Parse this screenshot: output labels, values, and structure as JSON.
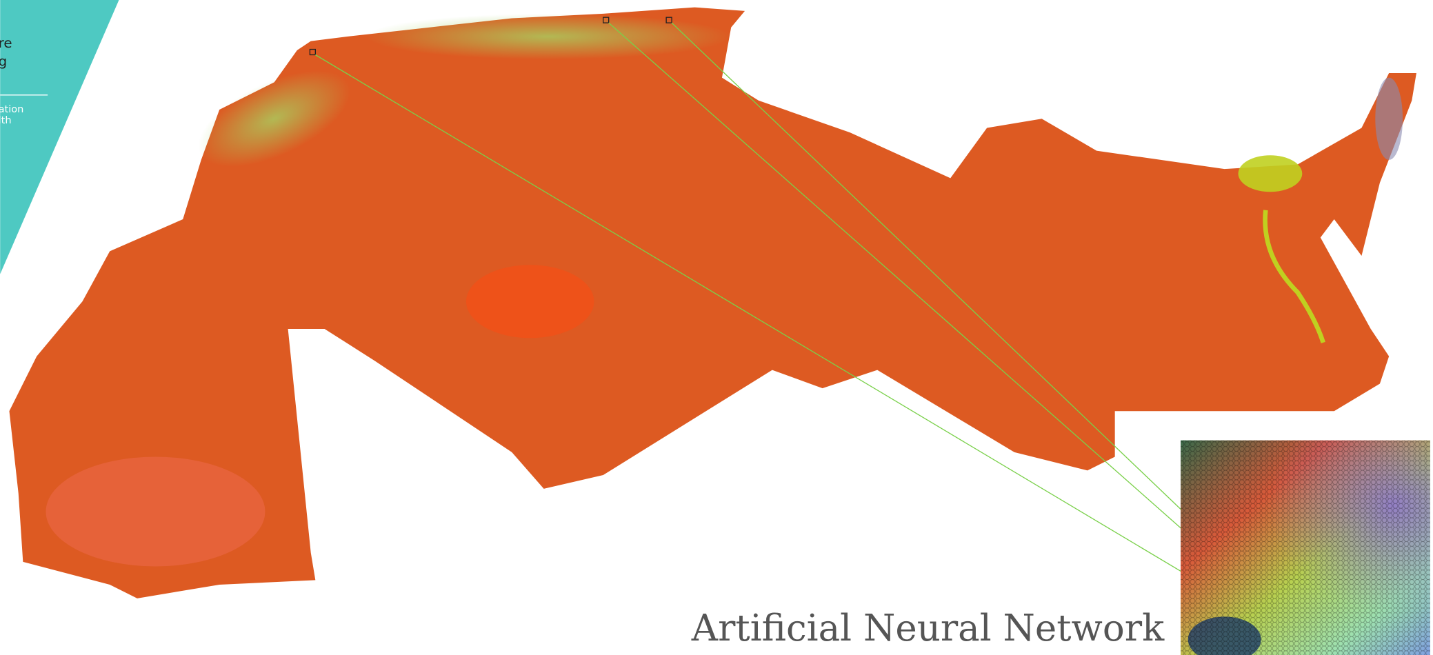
{
  "sidebar": {
    "lines": [
      "re",
      "g"
    ],
    "sub_lines": [
      "ation",
      "lth"
    ]
  },
  "title": "Artificial Neural Network"
}
